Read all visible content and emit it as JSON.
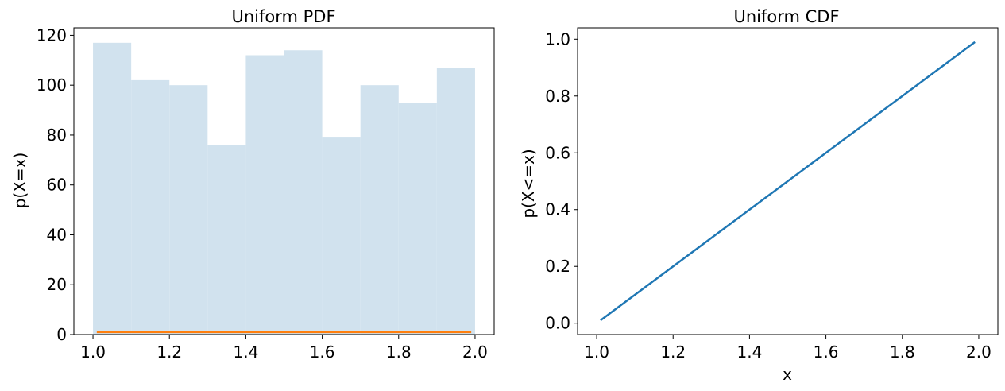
{
  "chart_data": [
    {
      "type": "bar",
      "title": "Uniform PDF",
      "xlabel": "",
      "ylabel": "p(X=x)",
      "xlim": [
        0.95,
        2.05
      ],
      "ylim": [
        0,
        123
      ],
      "xticks": [
        1.0,
        1.2,
        1.4,
        1.6,
        1.8,
        2.0
      ],
      "xtick_labels": [
        "1.0",
        "1.2",
        "1.4",
        "1.6",
        "1.8",
        "2.0"
      ],
      "yticks": [
        0,
        20,
        40,
        60,
        80,
        100,
        120
      ],
      "ytick_labels": [
        "0",
        "20",
        "40",
        "60",
        "80",
        "100",
        "120"
      ],
      "bin_edges": [
        1.0,
        1.1,
        1.2,
        1.3,
        1.4,
        1.5,
        1.6,
        1.7,
        1.8,
        1.9,
        2.0
      ],
      "values": [
        117,
        102,
        100,
        76,
        112,
        114,
        79,
        100,
        93,
        107
      ],
      "bar_color": "#d1e2ee",
      "line": {
        "x": [
          1.01,
          1.99
        ],
        "y": [
          1.0,
          1.0
        ],
        "color": "#ff7f0e"
      },
      "grid": false
    },
    {
      "type": "line",
      "title": "Uniform CDF",
      "xlabel": "x",
      "ylabel": "p(X<=x)",
      "xlim": [
        0.95,
        2.05
      ],
      "ylim": [
        -0.04,
        1.04
      ],
      "xticks": [
        1.0,
        1.2,
        1.4,
        1.6,
        1.8,
        2.0
      ],
      "xtick_labels": [
        "1.0",
        "1.2",
        "1.4",
        "1.6",
        "1.8",
        "2.0"
      ],
      "yticks": [
        0.0,
        0.2,
        0.4,
        0.6,
        0.8,
        1.0
      ],
      "ytick_labels": [
        "0.0",
        "0.2",
        "0.4",
        "0.6",
        "0.8",
        "1.0"
      ],
      "series": [
        {
          "x": [
            1.01,
            1.99
          ],
          "y": [
            0.01,
            0.99
          ],
          "color": "#1f77b4"
        }
      ],
      "grid": false
    }
  ]
}
